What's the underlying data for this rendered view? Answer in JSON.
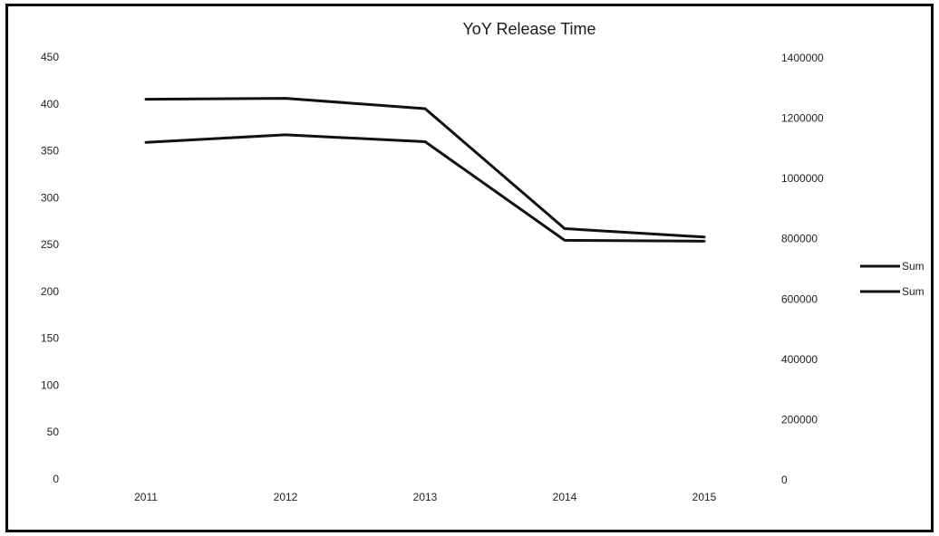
{
  "chart_data": {
    "type": "line",
    "title": "YoY Release Time",
    "categories": [
      "2011",
      "2012",
      "2013",
      "2014",
      "2015"
    ],
    "y_left": {
      "ylim": [
        0,
        450
      ],
      "ticks": [
        "0",
        "50",
        "100",
        "150",
        "200",
        "250",
        "300",
        "350",
        "400",
        "450"
      ]
    },
    "y_right": {
      "ylim": [
        0,
        1400000
      ],
      "ticks": [
        "0",
        "200000",
        "400000",
        "600000",
        "800000",
        "1000000",
        "1200000",
        "1400000"
      ]
    },
    "series": [
      {
        "name": "Sum",
        "axis": "left",
        "values": [
          405,
          406,
          395,
          267,
          258
        ]
      },
      {
        "name": "Sum",
        "axis": "right",
        "values": [
          1120000,
          1145000,
          1122000,
          795000,
          792000
        ]
      }
    ],
    "legend_position": "right",
    "grid": false,
    "line_color": "#111111"
  }
}
